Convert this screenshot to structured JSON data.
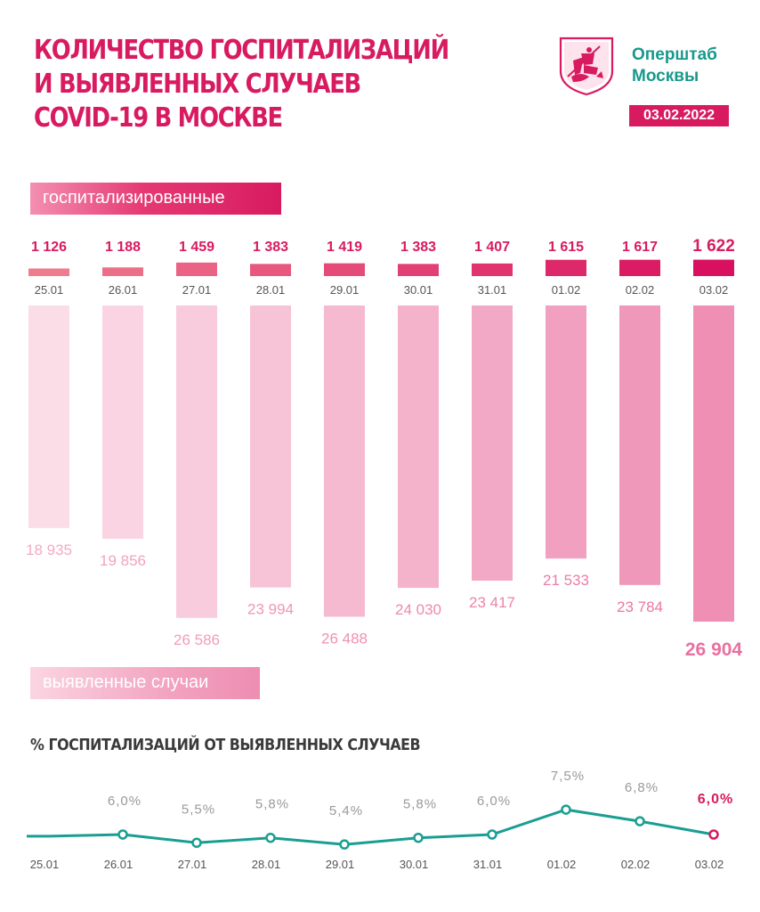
{
  "header": {
    "title_lines": [
      "КОЛИЧЕСТВО ГОСПИТАЛИЗАЦИЙ",
      "И ВЫЯВЛЕННЫХ СЛУЧАЕВ",
      "COVID-19 В МОСКВЕ"
    ],
    "brand_lines": [
      "Оперштаб",
      "Москвы"
    ],
    "date": "03.02.2022",
    "logo_icon": "moscow-coat-of-arms-icon"
  },
  "legend": {
    "hospitalized_label": "госпитализированные",
    "cases_label": "выявленные случаи"
  },
  "line_section": {
    "title": "% ГОСПИТАЛИЗАЦИЙ ОТ ВЫЯВЛЕННЫХ СЛУЧАЕВ"
  },
  "colors": {
    "accent": "#d81b60",
    "brand_teal": "#17998c",
    "cases_label": "#ee8fb3",
    "line": "#1a9e93"
  },
  "chart_data": [
    {
      "type": "bar",
      "categories": [
        "25.01",
        "26.01",
        "27.01",
        "28.01",
        "29.01",
        "30.01",
        "31.01",
        "01.02",
        "02.02",
        "03.02"
      ],
      "series": [
        {
          "name": "госпитализированные",
          "values": [
            1126,
            1188,
            1459,
            1383,
            1419,
            1383,
            1407,
            1615,
            1617,
            1622
          ],
          "labels": [
            "1 126",
            "1 188",
            "1 459",
            "1 383",
            "1 419",
            "1 383",
            "1 407",
            "1 615",
            "1 617",
            "1 622"
          ]
        },
        {
          "name": "выявленные случаи",
          "values": [
            18935,
            19856,
            26586,
            23994,
            26488,
            24030,
            23417,
            21533,
            23784,
            26904
          ],
          "labels": [
            "18 935",
            "19 856",
            "26 586",
            "23 994",
            "26 488",
            "24 030",
            "23 417",
            "21 533",
            "23 784",
            "26 904"
          ]
        }
      ],
      "title": "КОЛИЧЕСТВО ГОСПИТАЛИЗАЦИЙ И ВЫЯВЛЕННЫХ СЛУЧАЕВ COVID-19 В МОСКВЕ",
      "xlabel": "",
      "ylabel": ""
    },
    {
      "type": "line",
      "categories": [
        "25.01",
        "26.01",
        "27.01",
        "28.01",
        "29.01",
        "30.01",
        "31.01",
        "01.02",
        "02.02",
        "03.02"
      ],
      "series": [
        {
          "values": [
            5.9,
            6.0,
            5.5,
            5.8,
            5.4,
            5.8,
            6.0,
            7.5,
            6.8,
            6.0
          ],
          "labels": [
            "",
            "6,0%",
            "5,5%",
            "5,8%",
            "5,4%",
            "5,8%",
            "6,0%",
            "7,5%",
            "6,8%",
            "6,0%"
          ]
        }
      ],
      "title": "% ГОСПИТАЛИЗАЦИЙ ОТ ВЫЯВЛЕННЫХ СЛУЧАЕВ",
      "xlabel": "",
      "ylabel": ""
    }
  ]
}
